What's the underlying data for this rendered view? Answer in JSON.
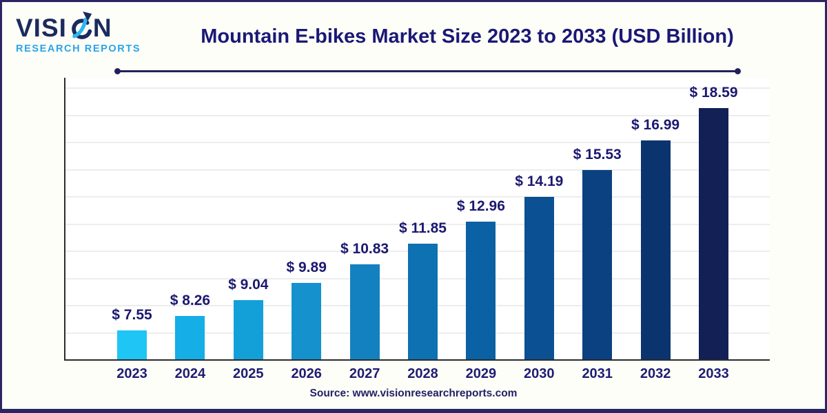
{
  "page": {
    "background": "#FCFEF7",
    "frame_color": "#2B2565"
  },
  "header": {
    "logo": {
      "brand_prefix": "VISI",
      "brand_suffix": "N",
      "brand_full": "VISION",
      "subtitle": "RESEARCH REPORTS",
      "brand_color": "#1B2A5E",
      "subtitle_color": "#2AA3EA",
      "icon": "drop-arrow-icon",
      "icon_cyan": "#2BB7F0",
      "icon_navy": "#1B2A5E"
    },
    "title": "Mountain E-bikes Market Size 2023 to 2033 (USD Billion)",
    "title_color": "#1B1876"
  },
  "chart_data": {
    "type": "bar",
    "title": "Mountain E-bikes Market Size 2023 to 2033 (USD Billion)",
    "unit": "USD Billion",
    "categories": [
      "2023",
      "2024",
      "2025",
      "2026",
      "2027",
      "2028",
      "2029",
      "2030",
      "2031",
      "2032",
      "2033"
    ],
    "values": [
      7.55,
      8.26,
      9.04,
      9.89,
      10.83,
      11.85,
      12.96,
      14.19,
      15.53,
      16.99,
      18.59
    ],
    "value_prefix": "$ ",
    "data_labels": [
      "$ 7.55",
      "$ 8.26",
      "$ 9.04",
      "$ 9.89",
      "$ 10.83",
      "$ 11.85",
      "$ 12.96",
      "$ 14.19",
      "$ 15.53",
      "$ 16.99",
      "$ 18.59"
    ],
    "bar_colors": [
      "#1FC5F4",
      "#16AEE6",
      "#13A0D9",
      "#1591CD",
      "#1381BF",
      "#0E71B1",
      "#0A61A3",
      "#0B5092",
      "#0C4181",
      "#0B346F",
      "#132056"
    ],
    "label_color": "#1B1870",
    "tick_label_color": "#1F1C73",
    "axis_color": "#2B2B2B",
    "gridline_color": "#EDEDED",
    "grid": true,
    "legend": false,
    "xlabel": "",
    "ylabel": "",
    "ylim": [
      6.1,
      20.1
    ],
    "y_axis_labels_visible": false
  },
  "footer": {
    "source": "Source: www.visionresearchreports.com",
    "source_color": "#232064"
  }
}
